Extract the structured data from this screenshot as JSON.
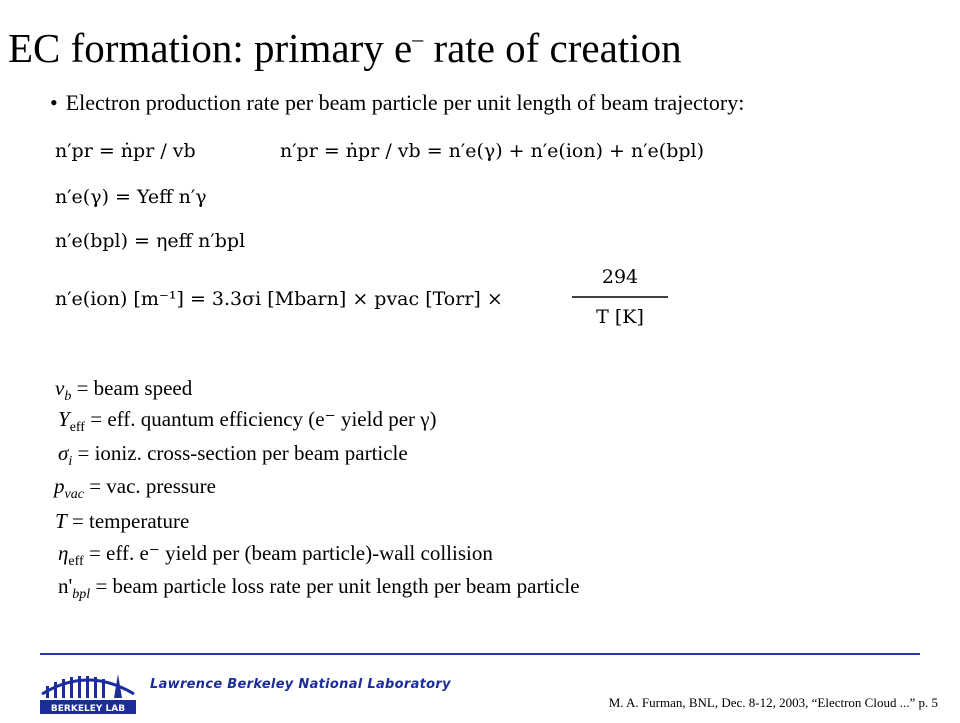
{
  "slide": {
    "title_main": "EC formation: primary e",
    "title_sup": "–",
    "title_tail": " rate of creation",
    "bullet_glyph": "•",
    "bullet_text": "Electron production rate  per beam particle per unit length of beam trajectory:"
  },
  "equations": {
    "eq1_left": "n′pr = ṅpr / vb",
    "eq1_right": "n′pr = ṅpr / vb = n′e(γ) + n′e(ion) + n′e(bpl)",
    "eq2": "n′e(γ) = Yeff n′γ",
    "eq3": "n′e(bpl) = ηeff n′bpl",
    "eq4_lhs": "n′e(ion) [m⁻¹] = 3.3σi [Mbarn] × pvac [Torr] ×",
    "eq4_num": "294",
    "eq4_den": "T [K]"
  },
  "definitions": [
    {
      "sym": "v",
      "sub": "b",
      "text": " = beam speed"
    },
    {
      "sym": "Y",
      "sub": "eff",
      "text": " = eff. quantum efficiency (e⁻ yield per γ)"
    },
    {
      "sym": "σ",
      "sub": "i",
      "text": " = ioniz. cross-section per beam particle"
    },
    {
      "sym": "p",
      "sub": "vac",
      "text": " = vac. pressure"
    },
    {
      "sym": "T",
      "sub": "",
      "text": " = temperature"
    },
    {
      "sym": "η",
      "sub": "eff",
      "text": " = eff. e⁻ yield per (beam particle)-wall collision"
    },
    {
      "sym": "n'",
      "sub": "bpl",
      "text": " = beam particle loss rate per unit length per beam particle"
    }
  ],
  "footer": {
    "lab_name": "Lawrence Berkeley National Laboratory",
    "citation": "M. A. Furman, BNL, Dec. 8-12, 2003, “Electron Cloud ...”  p. 5",
    "logo_text": "BERKELEY LAB"
  },
  "colors": {
    "rule": "#2a3aa0",
    "lab_name": "#1c2d9a"
  }
}
